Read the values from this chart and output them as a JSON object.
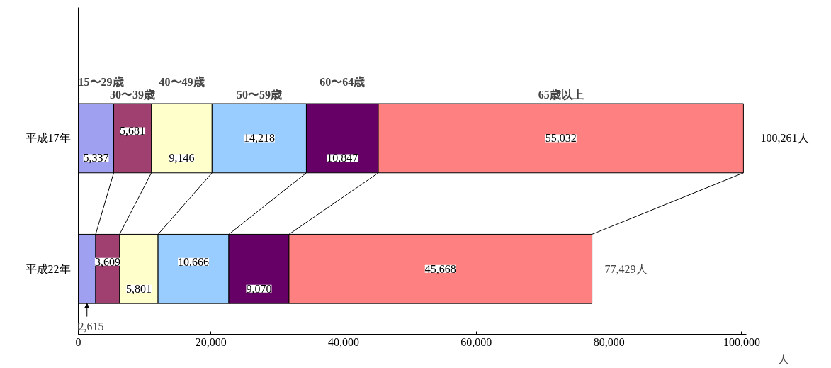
{
  "chart_data": {
    "type": "bar",
    "orientation": "horizontal",
    "stacked": true,
    "categories": [
      "平成17年",
      "平成22年"
    ],
    "series": [
      {
        "name": "15〜29歳",
        "color": "#a0a0f0",
        "values": [
          5337,
          2615
        ],
        "value_labels": [
          "5,337",
          "2,615"
        ]
      },
      {
        "name": "30〜39歳",
        "color": "#a04070",
        "values": [
          5681,
          3609
        ],
        "value_labels": [
          "5,681",
          "3,609"
        ]
      },
      {
        "name": "40〜49歳",
        "color": "#ffffcc",
        "values": [
          9146,
          5801
        ],
        "value_labels": [
          "9,146",
          "5,801"
        ]
      },
      {
        "name": "50〜59歳",
        "color": "#99ccff",
        "values": [
          14218,
          10666
        ],
        "value_labels": [
          "14,218",
          "10,666"
        ]
      },
      {
        "name": "60〜64歳",
        "color": "#660066",
        "values": [
          10847,
          9070
        ],
        "value_labels": [
          "10,847",
          "9,070"
        ]
      },
      {
        "name": "65歳以上",
        "color": "#ff8080",
        "values": [
          55032,
          45668
        ],
        "value_labels": [
          "55,032",
          "45,668"
        ]
      }
    ],
    "totals": [
      "100,261人",
      "77,429人"
    ],
    "xlabel": "人",
    "xlim": [
      0,
      100700
    ],
    "xticks": [
      0,
      {
        "value": 20000,
        "label": "20,000"
      },
      {
        "value": 40000,
        "label": "40,000"
      },
      {
        "value": 60000,
        "label": "60,000"
      },
      {
        "value": 80000,
        "label": "80,000"
      },
      {
        "value": 100000,
        "label": "100,000"
      }
    ],
    "grid": false
  }
}
